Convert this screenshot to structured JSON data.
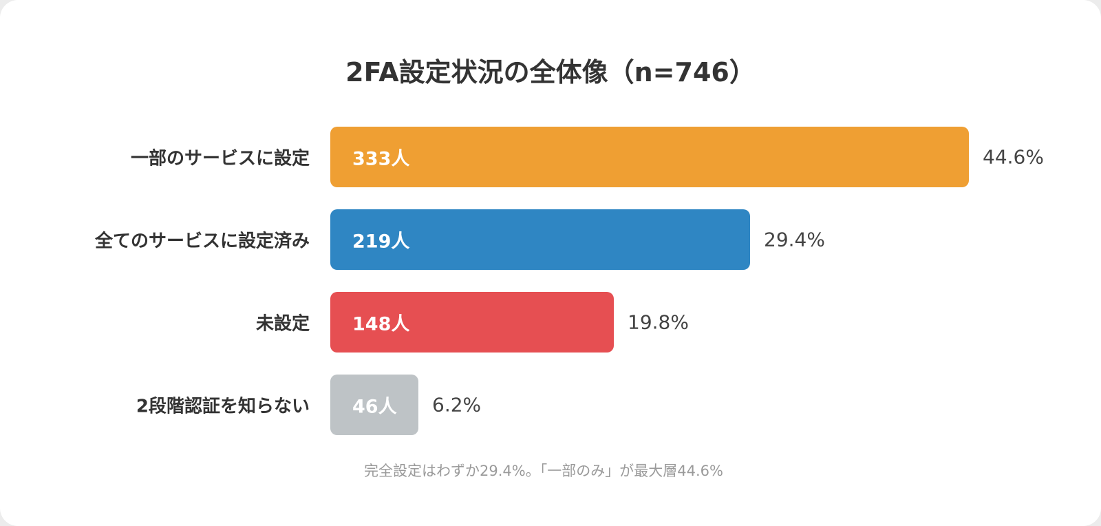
{
  "chart_data": {
    "type": "bar",
    "orientation": "horizontal",
    "title": "2FA設定状況の全体像（n=746）",
    "categories": [
      "一部のサービスに設定",
      "全てのサービスに設定済み",
      "未設定",
      "2段階認証を知らない"
    ],
    "values": [
      333,
      219,
      148,
      46
    ],
    "value_labels": [
      "333人",
      "219人",
      "148人",
      "46人"
    ],
    "percent_labels": [
      "44.6%",
      "29.4%",
      "19.8%",
      "6.2%"
    ],
    "colors": [
      "#EF9F33",
      "#2F86C3",
      "#E64F52",
      "#BEC3C6"
    ],
    "xlim": [
      0,
      333
    ],
    "grid": false,
    "legend": "none",
    "note": "完全設定はわずか29.4%。「一部のみ」が最大層44.6%"
  }
}
